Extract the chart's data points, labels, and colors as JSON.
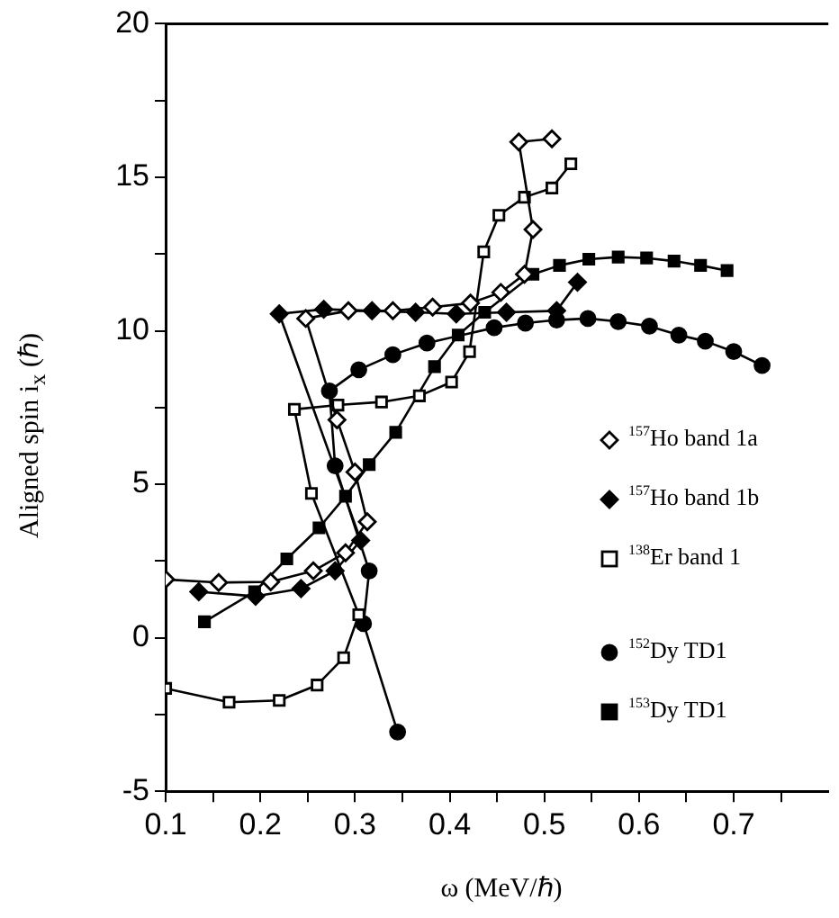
{
  "chart_data": {
    "type": "line",
    "xlabel": "ω (MeV/ℏ)",
    "ylabel": "Aligned spin  i$_{x}$ (ℏ)",
    "xlim": [
      0.1,
      0.8
    ],
    "ylim": [
      -5,
      20
    ],
    "xticks": [
      0.1,
      {
        "value": 0.15,
        "label": null
      },
      0.2,
      {
        "value": 0.25,
        "label": null
      },
      0.3,
      {
        "value": 0.35,
        "label": null
      },
      0.4,
      {
        "value": 0.45,
        "label": null
      },
      0.5,
      {
        "value": 0.55,
        "label": null
      },
      0.6,
      {
        "value": 0.65,
        "label": null
      },
      0.7,
      {
        "value": 0.75,
        "label": null
      }
    ],
    "yticks": [
      -5,
      {
        "value": -2.5,
        "label": null
      },
      0,
      {
        "value": 2.5,
        "label": null
      },
      5,
      {
        "value": 7.5,
        "label": null
      },
      10,
      {
        "value": 12.5,
        "label": null
      },
      15,
      {
        "value": 17.5,
        "label": null
      },
      20
    ],
    "grid": false,
    "legend": "right",
    "line_style": "solid",
    "series": [
      {
        "name": "$^{157}$Ho band 1a",
        "color": "#000000",
        "marker": "diamond-open",
        "x": [
          0.1,
          0.156,
          0.211,
          0.256,
          0.29,
          0.313,
          0.3,
          0.281,
          0.248,
          0.293,
          0.34,
          0.382,
          0.422,
          0.454,
          0.479,
          0.488,
          0.473,
          0.508
        ],
        "values": [
          1.9,
          1.8,
          1.82,
          2.18,
          2.77,
          3.78,
          5.4,
          7.1,
          10.4,
          10.65,
          10.65,
          10.77,
          10.9,
          11.25,
          11.84,
          13.3,
          16.15,
          16.25
        ]
      },
      {
        "name": "$^{157}$Ho band 1b",
        "color": "#000000",
        "marker": "diamond",
        "x": [
          0.135,
          0.195,
          0.243,
          0.279,
          0.306,
          0.22,
          0.267,
          0.318,
          0.364,
          0.407,
          0.46,
          0.513,
          0.535
        ],
        "values": [
          1.5,
          1.35,
          1.6,
          2.18,
          3.17,
          10.55,
          10.7,
          10.65,
          10.6,
          10.55,
          10.6,
          10.65,
          11.58
        ]
      },
      {
        "name": "$^{138}$Er band 1",
        "color": "#000000",
        "marker": "square-open",
        "x": [
          0.1,
          0.167,
          0.22,
          0.26,
          0.288,
          0.304,
          0.254,
          0.236,
          0.282,
          0.328,
          0.368,
          0.402,
          0.421,
          0.436,
          0.452,
          0.479,
          0.508,
          0.528
        ],
        "values": [
          -1.65,
          -2.1,
          -2.04,
          -1.54,
          -0.65,
          0.75,
          4.7,
          7.44,
          7.58,
          7.68,
          7.88,
          8.33,
          9.32,
          12.57,
          13.76,
          14.35,
          14.65,
          15.44
        ]
      },
      {
        "name": "$^{152}$Dy TD1",
        "color": "#000000",
        "marker": "circle",
        "x": [
          0.345,
          0.309,
          0.315,
          0.279,
          0.273,
          0.304,
          0.34,
          0.376,
          0.447,
          0.48,
          0.513,
          0.546,
          0.578,
          0.611,
          0.642,
          0.67,
          0.7,
          0.73
        ],
        "values": [
          -3.07,
          0.46,
          2.18,
          5.6,
          8.04,
          8.73,
          9.22,
          9.6,
          10.1,
          10.25,
          10.35,
          10.4,
          10.3,
          10.15,
          9.86,
          9.66,
          9.32,
          8.87
        ]
      },
      {
        "name": "$^{153}$Dy TD1",
        "color": "#000000",
        "marker": "square",
        "x": [
          0.141,
          0.194,
          0.228,
          0.262,
          0.29,
          0.315,
          0.343,
          0.384,
          0.409,
          0.437,
          0.488,
          0.516,
          0.547,
          0.578,
          0.608,
          0.637,
          0.665,
          0.693
        ],
        "values": [
          0.52,
          1.5,
          2.57,
          3.58,
          4.61,
          5.64,
          6.69,
          8.83,
          9.86,
          10.6,
          11.84,
          12.13,
          12.33,
          12.4,
          12.37,
          12.27,
          12.13,
          11.96
        ]
      }
    ]
  }
}
